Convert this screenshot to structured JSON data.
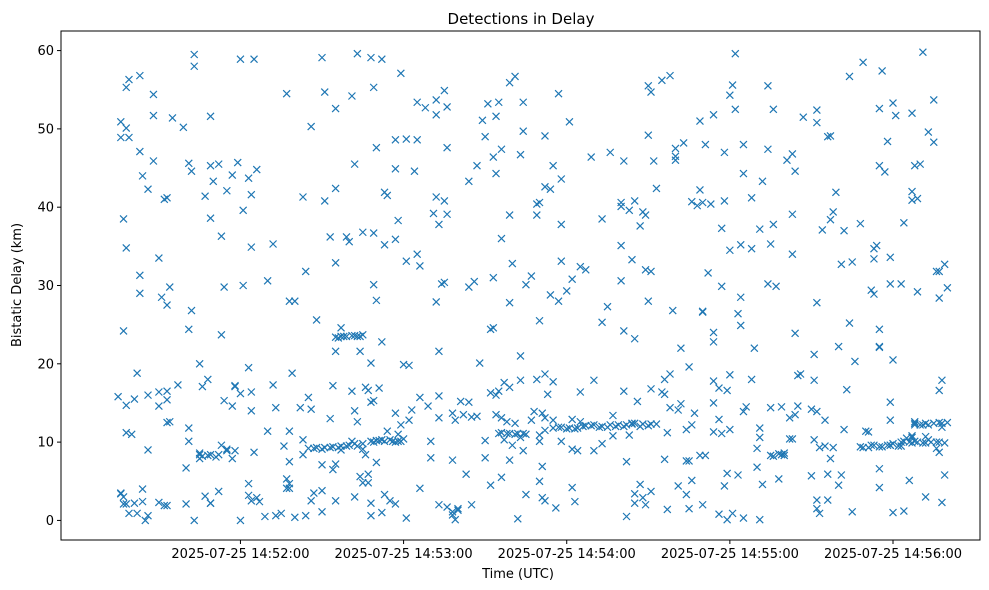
{
  "chart_data": {
    "type": "scatter",
    "title": "Detections in Delay",
    "xlabel": "Time (UTC)",
    "ylabel": "Bistatic Delay (km)",
    "x_ticks": [
      "2025-07-25 14:52:00",
      "2025-07-25 14:53:00",
      "2025-07-25 14:54:00",
      "2025-07-25 14:55:00",
      "2025-07-25 14:56:00"
    ],
    "y_ticks": [
      "0",
      "10",
      "20",
      "30",
      "40",
      "50",
      "60"
    ],
    "xlim": [
      "2025-07-25 14:50:54",
      "2025-07-25 14:56:32"
    ],
    "ylim": [
      -2.5,
      62.5
    ],
    "marker": "x",
    "grid": false,
    "colors": {
      "series": "#1f77b4"
    },
    "series": [
      {
        "x": [],
        "y": []
      }
    ]
  }
}
